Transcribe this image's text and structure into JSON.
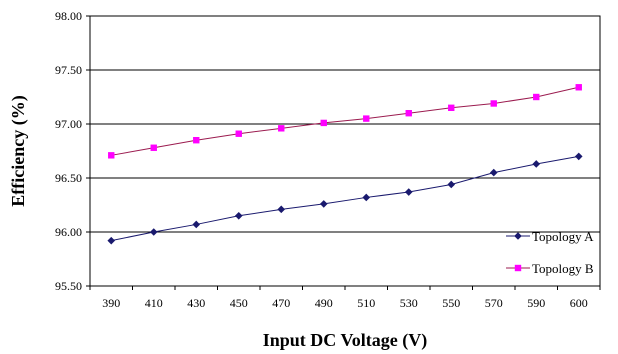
{
  "chart_data": {
    "type": "line",
    "xlabel": "Input DC Voltage (V)",
    "ylabel": "Efficiency (%)",
    "categories": [
      "390",
      "410",
      "430",
      "450",
      "470",
      "490",
      "510",
      "530",
      "550",
      "570",
      "590",
      "600"
    ],
    "y_ticks": [
      "95.50",
      "96.00",
      "96.50",
      "97.00",
      "97.50",
      "98.00"
    ],
    "ylim": [
      95.5,
      98.0
    ],
    "grid": true,
    "legend_position": "right",
    "series": [
      {
        "name": "Topology A",
        "color": "#1a1a6e",
        "marker": "diamond",
        "values": [
          95.92,
          96.0,
          96.07,
          96.15,
          96.21,
          96.26,
          96.32,
          96.37,
          96.44,
          96.55,
          96.63,
          96.7
        ]
      },
      {
        "name": "Topology B",
        "color": "#ff00ff",
        "line_color": "#9b1b4f",
        "marker": "square",
        "values": [
          96.71,
          96.78,
          96.85,
          96.91,
          96.96,
          97.01,
          97.05,
          97.1,
          97.15,
          97.19,
          97.25,
          97.34
        ]
      }
    ]
  }
}
